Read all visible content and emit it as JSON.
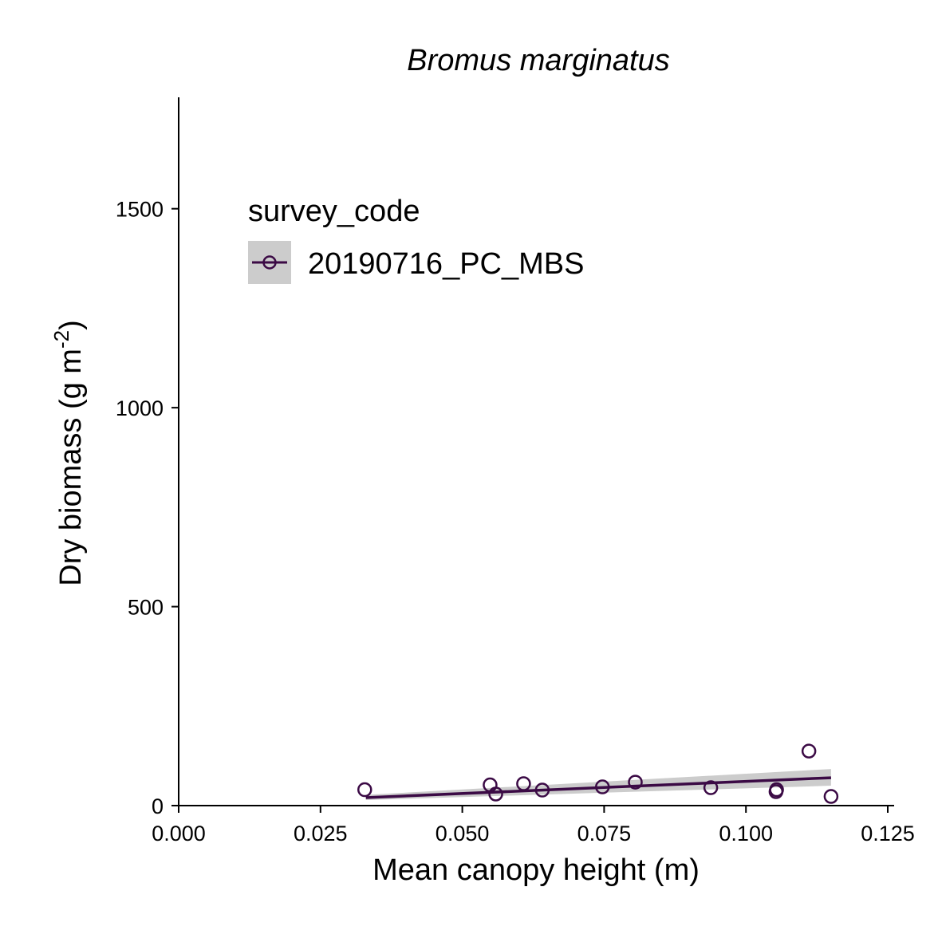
{
  "chart_data": {
    "type": "scatter",
    "title": "Bromus marginatus",
    "xlabel": "Mean canopy height (m)",
    "ylabel": "Dry biomass (g m",
    "ylabel_sup": "-2",
    "ylabel_close": ")",
    "xlim": [
      0.0,
      0.125
    ],
    "ylim": [
      0,
      1780
    ],
    "xticks": [
      0.0,
      0.025,
      0.05,
      0.075,
      0.1,
      0.125
    ],
    "xtick_labels": [
      "0.000",
      "0.025",
      "0.050",
      "0.075",
      "0.100",
      "0.125"
    ],
    "yticks": [
      0,
      500,
      1000,
      1500
    ],
    "ytick_labels": [
      "0",
      "500",
      "1000",
      "1500"
    ],
    "grid": false,
    "legend": {
      "title": "survey_code",
      "placement": "top-left",
      "entries": [
        "20190716_PC_MBS"
      ]
    },
    "series": [
      {
        "name": "20190716_PC_MBS",
        "color": "#3b0a45",
        "points": [
          {
            "x": 0.0328,
            "y": 40
          },
          {
            "x": 0.0549,
            "y": 52
          },
          {
            "x": 0.0559,
            "y": 29
          },
          {
            "x": 0.0608,
            "y": 55
          },
          {
            "x": 0.0641,
            "y": 39
          },
          {
            "x": 0.0747,
            "y": 47
          },
          {
            "x": 0.0805,
            "y": 59
          },
          {
            "x": 0.0938,
            "y": 45
          },
          {
            "x": 0.1053,
            "y": 35
          },
          {
            "x": 0.1054,
            "y": 40
          },
          {
            "x": 0.1111,
            "y": 137
          },
          {
            "x": 0.115,
            "y": 23
          }
        ],
        "fit": {
          "x": [
            0.033,
            0.115
          ],
          "y": [
            20,
            70
          ],
          "ci_lower": [
            14,
            50
          ],
          "ci_upper": [
            27,
            92
          ]
        }
      }
    ],
    "ci_color": "#cccccc"
  }
}
